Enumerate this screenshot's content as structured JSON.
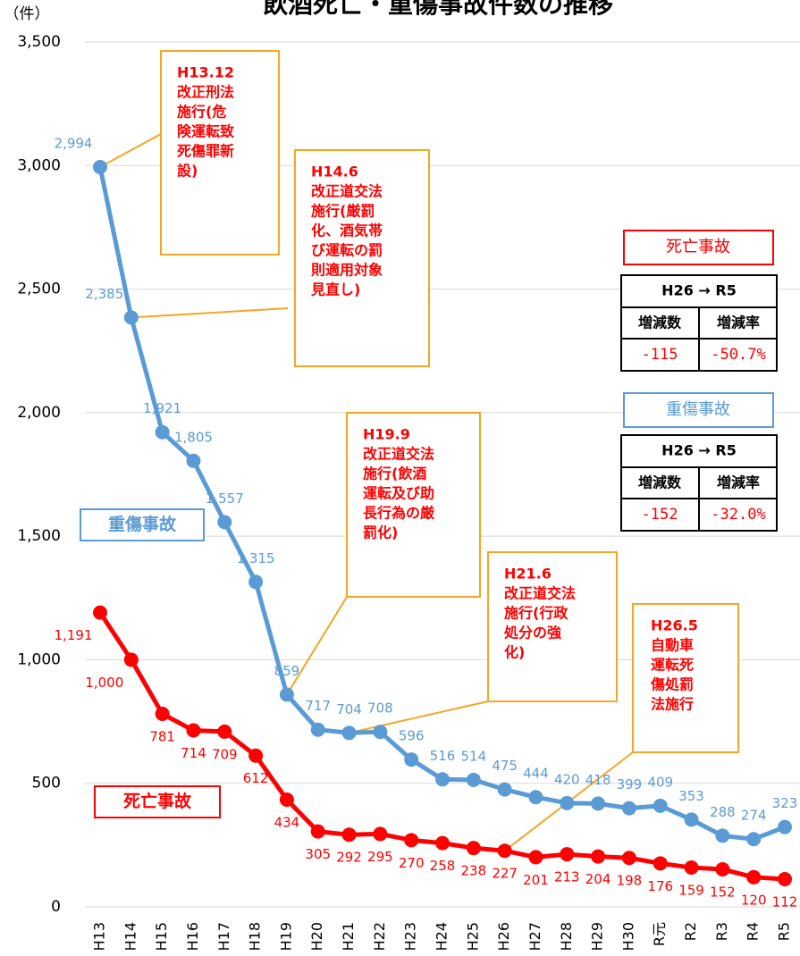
{
  "chart_data": {
    "type": "line",
    "title": "飲酒死亡・重傷事故件数の推移",
    "y_label": "（件）",
    "categories": [
      "H13",
      "H14",
      "H15",
      "H16",
      "H17",
      "H18",
      "H19",
      "H20",
      "H21",
      "H22",
      "H23",
      "H24",
      "H25",
      "H26",
      "H27",
      "H28",
      "H29",
      "H30",
      "R元",
      "R2",
      "R3",
      "R4",
      "R5"
    ],
    "series": [
      {
        "name": "重傷事故",
        "color": "#5b9bd5",
        "values": [
          2994,
          2385,
          1921,
          1805,
          1557,
          1315,
          859,
          717,
          704,
          708,
          596,
          516,
          514,
          475,
          444,
          420,
          418,
          399,
          409,
          353,
          288,
          274,
          323
        ],
        "value_labels": [
          "2,994",
          "2,385",
          "1,921",
          "1,805",
          "1,557",
          "1,315",
          "859",
          "717",
          "704",
          "708",
          "596",
          "516",
          "514",
          "475",
          "444",
          "420",
          "418",
          "399",
          "409",
          "353",
          "288",
          "274",
          "323"
        ]
      },
      {
        "name": "死亡事故",
        "color": "#ff0000",
        "values": [
          1191,
          1000,
          781,
          714,
          709,
          612,
          434,
          305,
          292,
          295,
          270,
          258,
          238,
          227,
          201,
          213,
          204,
          198,
          176,
          159,
          152,
          120,
          112
        ],
        "value_labels": [
          "1,191",
          "1,000",
          "781",
          "714",
          "709",
          "612",
          "434",
          "305",
          "292",
          "295",
          "270",
          "258",
          "238",
          "227",
          "201",
          "213",
          "204",
          "198",
          "176",
          "159",
          "152",
          "120",
          "112"
        ]
      }
    ],
    "ylim": [
      0,
      3500
    ],
    "yticks": [
      0,
      500,
      {
        "value": 1000,
        "label": "1,000"
      },
      {
        "value": 1500,
        "label": "1,500"
      },
      {
        "value": 2000,
        "label": "2,000"
      },
      {
        "value": 2500,
        "label": "2,500"
      },
      {
        "value": 3000,
        "label": "3,000"
      },
      {
        "value": 3500,
        "label": "3,500"
      }
    ],
    "grid": true,
    "annotations": [
      {
        "lines": [
          "H13.12",
          "改正刑法",
          "施行(危",
          "険運転致",
          "死傷罪新",
          "設)"
        ],
        "category": "H13"
      },
      {
        "lines": [
          "H14.6",
          "改正道交法",
          "施行(厳罰",
          "化、酒気帯",
          "び運転の罰",
          "則適用対象",
          "見直し)"
        ],
        "category": "H14"
      },
      {
        "lines": [
          "H19.9",
          "改正道交法",
          "施行(飲酒",
          "運転及び助",
          "長行為の厳",
          "罰化)"
        ],
        "category": "H19"
      },
      {
        "lines": [
          "H21.6",
          "改正道交法",
          "施行(行政",
          "処分の強",
          "化)"
        ],
        "category": "H21"
      },
      {
        "lines": [
          "H26.5",
          "自動車",
          "運転死",
          "傷処罰",
          "法施行"
        ],
        "category": "H26"
      }
    ],
    "summary_tables": [
      {
        "label": "死亡事故",
        "header": "H26 → R5",
        "columns": [
          "増減数",
          "増減率"
        ],
        "cells": [
          "-115",
          "-50.7%"
        ]
      },
      {
        "label": "重傷事故",
        "header": "H26 → R5",
        "columns": [
          "増減数",
          "増減率"
        ],
        "cells": [
          "-152",
          "-32.0%"
        ]
      }
    ]
  }
}
